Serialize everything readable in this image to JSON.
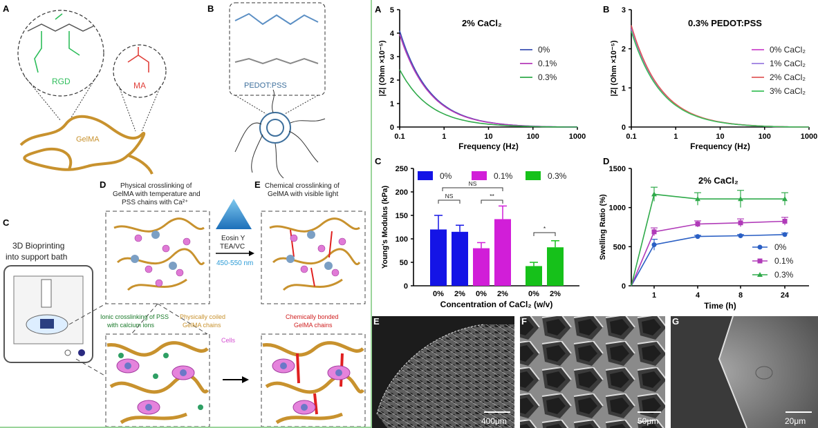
{
  "left_figure": {
    "panels": {
      "A": "A",
      "B": "B",
      "C": "C",
      "D": "D",
      "E": "E"
    },
    "rgd_label": "RGD",
    "ma_label": "MA",
    "gelma_label": "GelMA",
    "pedot_label": "PEDOT:PSS",
    "bioprint_l1": "3D Bioprinting",
    "bioprint_l2": "into support bath",
    "d_l1": "Physical crosslinking of",
    "d_l2": "GelMA with temperature and",
    "d_l3": "PSS chains with Ca²⁺",
    "e_l1": "Chemical crosslinking of",
    "e_l2": "GelMA with visible light",
    "photo_l1": "Eosin Y",
    "photo_l2": "TEA/VC",
    "photo_l3": "450-550 nm",
    "ionic_l1": "Ionic crosslinking of PSS",
    "ionic_l2": "with calcium ions",
    "coiled_l1": "Physically coiled",
    "coiled_l2": "GelMA chains",
    "cells": "Cells",
    "bonded_l1": "Chemically bonded",
    "bonded_l2": "GelMA chains"
  },
  "right_figure": {
    "panels": {
      "A": "A",
      "B": "B",
      "C": "C",
      "D": "D",
      "E": "E",
      "F": "F",
      "G": "G"
    },
    "sem_scales": [
      "400μm",
      "50μm",
      "20μm"
    ]
  },
  "chart_data": [
    {
      "type": "line",
      "panel": "A",
      "title": "2% CaCl₂",
      "xlabel": "Frequency (Hz)",
      "ylabel": "|Z| (Ohm ×10⁻⁵)",
      "xscale": "log",
      "xlim": [
        0.1,
        1000
      ],
      "ylim": [
        0,
        5
      ],
      "xticks": [
        "0.1",
        "1",
        "10",
        "100",
        "1000"
      ],
      "yticks": [
        "0",
        "1",
        "2",
        "3",
        "4",
        "5"
      ],
      "legend_position": "right",
      "series": [
        {
          "name": "0%",
          "color": "#3a4fb3",
          "z0": 4.1
        },
        {
          "name": "0.1%",
          "color": "#b43ab8",
          "z0": 3.95
        },
        {
          "name": "0.3%",
          "color": "#2faa4a",
          "z0": 2.45
        }
      ]
    },
    {
      "type": "line",
      "panel": "B",
      "title": "0.3% PEDOT:PSS",
      "xlabel": "Frequency (Hz)",
      "ylabel": "|Z| (Ohm ×10⁻⁵)",
      "xscale": "log",
      "xlim": [
        0.1,
        1000
      ],
      "ylim": [
        0,
        3
      ],
      "xticks": [
        "0.1",
        "1",
        "10",
        "100",
        "1000"
      ],
      "yticks": [
        "0",
        "1",
        "2",
        "3"
      ],
      "legend_position": "right",
      "series": [
        {
          "name": "0% CaCl₂",
          "color": "#cc44cc",
          "z0": 2.55
        },
        {
          "name": "1% CaCl₂",
          "color": "#9a7be0",
          "z0": 2.5
        },
        {
          "name": "2% CaCl₂",
          "color": "#e05a5a",
          "z0": 2.6
        },
        {
          "name": "3% CaCl₂",
          "color": "#3cbf5a",
          "z0": 2.45
        }
      ]
    },
    {
      "type": "bar",
      "panel": "C",
      "xlabel": "Concentration of CaCl₂ (w/v)",
      "ylabel": "Young's Modulus (kPa)",
      "ylim": [
        0,
        250
      ],
      "yticks": [
        "0",
        "50",
        "100",
        "150",
        "200",
        "250"
      ],
      "groups": [
        "0%",
        "0.1%",
        "0.3%"
      ],
      "categories": [
        "0%",
        "2%"
      ],
      "legend_position": "top",
      "series": [
        {
          "name": "0%",
          "color": "#1414e6",
          "values": [
            120,
            115
          ],
          "errors": [
            30,
            14
          ]
        },
        {
          "name": "0.1%",
          "color": "#d11ed8",
          "values": [
            80,
            142
          ],
          "errors": [
            12,
            28
          ]
        },
        {
          "name": "0.3%",
          "color": "#16c11a",
          "values": [
            42,
            82
          ],
          "errors": [
            8,
            14
          ]
        }
      ],
      "annotations": [
        "NS",
        "NS",
        "**",
        "*"
      ]
    },
    {
      "type": "line",
      "panel": "D",
      "title": "2% CaCl₂",
      "xlabel": "Time (h)",
      "ylabel": "Swelling Ratio (%)",
      "xticks": [
        "1",
        "4",
        "8",
        "24"
      ],
      "ylim": [
        0,
        1500
      ],
      "yticks": [
        "0",
        "500",
        "1000",
        "1500"
      ],
      "legend_position": "bottom-right",
      "series": [
        {
          "name": "0%",
          "color": "#2a5fc4",
          "marker": "circle",
          "values": [
            0,
            525,
            630,
            640,
            655
          ],
          "errors": [
            0,
            70,
            15,
            15,
            20
          ]
        },
        {
          "name": "0.1%",
          "color": "#b03ab8",
          "marker": "square",
          "values": [
            0,
            690,
            790,
            805,
            825
          ],
          "errors": [
            0,
            50,
            40,
            50,
            50
          ]
        },
        {
          "name": "0.3%",
          "color": "#2faa4a",
          "marker": "triangle",
          "values": [
            0,
            1170,
            1110,
            1110,
            1110
          ],
          "errors": [
            0,
            90,
            80,
            110,
            80
          ]
        }
      ]
    }
  ]
}
